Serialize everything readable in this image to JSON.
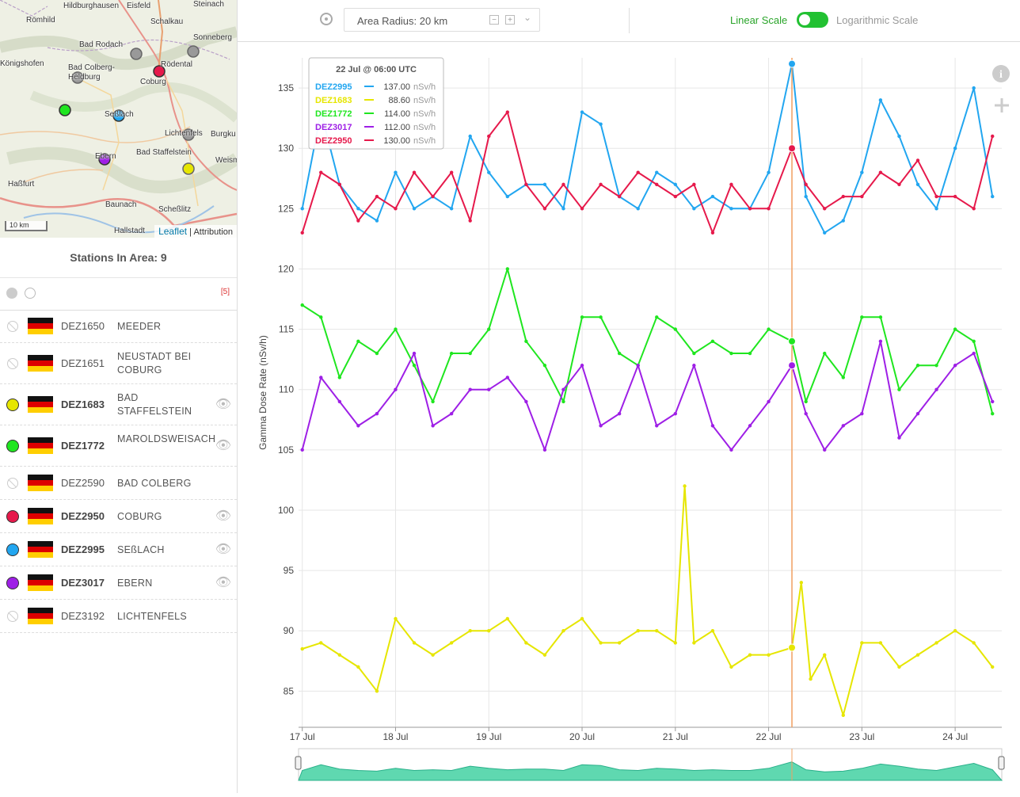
{
  "map": {
    "places": [
      {
        "name": "Hildburghausen"
      },
      {
        "name": "Eisfeld"
      },
      {
        "name": "Steinach"
      },
      {
        "name": "Römhild"
      },
      {
        "name": "Schalkau"
      },
      {
        "name": "Sonneberg"
      },
      {
        "name": "Bad Rodach"
      },
      {
        "name": "Rödental"
      },
      {
        "name": "Königshofen"
      },
      {
        "name": "Bad Colberg-Heldburg"
      },
      {
        "name": "Coburg"
      },
      {
        "name": "Seßlach"
      },
      {
        "name": "Lichtenfels"
      },
      {
        "name": "Burgku"
      },
      {
        "name": "Bad Staffelstein"
      },
      {
        "name": "Ebern"
      },
      {
        "name": "Weism"
      },
      {
        "name": "Haßfurt"
      },
      {
        "name": "Baunach"
      },
      {
        "name": "Scheßlitz"
      },
      {
        "name": "Hallstadt"
      }
    ],
    "scale_label": "10 km",
    "attribution_link": "Leaflet",
    "attribution_sep": "|",
    "attribution_text": "Attribution"
  },
  "stations_panel": {
    "title": "Stations In Area: 9",
    "selected_count": "[5]",
    "stations": [
      {
        "code": "DEZ1650",
        "name": "MEEDER",
        "active": false,
        "color": ""
      },
      {
        "code": "DEZ1651",
        "name": "NEUSTADT BEI COBURG",
        "active": false,
        "color": ""
      },
      {
        "code": "DEZ1683",
        "name": "BAD STAFFELSTEIN",
        "active": true,
        "color": "#e6e600"
      },
      {
        "code": "DEZ1772",
        "name": "MAROLDSWEISACH",
        "active": true,
        "color": "#1fe61f"
      },
      {
        "code": "DEZ2590",
        "name": "BAD COLBERG",
        "active": false,
        "color": ""
      },
      {
        "code": "DEZ2950",
        "name": "COBURG",
        "active": true,
        "color": "#e6194b"
      },
      {
        "code": "DEZ2995",
        "name": "SEßLACH",
        "active": true,
        "color": "#22a6f0"
      },
      {
        "code": "DEZ3017",
        "name": "EBERN",
        "active": true,
        "color": "#9e1fe6"
      },
      {
        "code": "DEZ3192",
        "name": "LICHTENFELS",
        "active": false,
        "color": ""
      }
    ]
  },
  "toolbar": {
    "radius_label": "Area Radius: 20 km",
    "linear_label": "Linear Scale",
    "log_label": "Logarithmic Scale"
  },
  "tooltip": {
    "title": "22 Jul @ 06:00 UTC",
    "rows": [
      {
        "code": "DEZ2995",
        "value": "137.00",
        "unit": "nSv/h",
        "color": "#22a6f0"
      },
      {
        "code": "DEZ1683",
        "value": "88.60",
        "unit": "nSv/h",
        "color": "#e6e600"
      },
      {
        "code": "DEZ1772",
        "value": "114.00",
        "unit": "nSv/h",
        "color": "#1fe61f"
      },
      {
        "code": "DEZ3017",
        "value": "112.00",
        "unit": "nSv/h",
        "color": "#9e1fe6"
      },
      {
        "code": "DEZ2950",
        "value": "130.00",
        "unit": "nSv/h",
        "color": "#e6194b"
      }
    ]
  },
  "chart_data": {
    "type": "line",
    "ylabel": "Gamma Dose Rate (nSv/h)",
    "ylim": [
      82,
      137.5
    ],
    "yticks": [
      85,
      90,
      95,
      100,
      105,
      110,
      115,
      120,
      125,
      130,
      135
    ],
    "xlim": [
      16.96,
      24.5
    ],
    "xticks": [
      {
        "v": 17,
        "label": "17 Jul"
      },
      {
        "v": 18,
        "label": "18 Jul"
      },
      {
        "v": 19,
        "label": "19 Jul"
      },
      {
        "v": 20,
        "label": "20 Jul"
      },
      {
        "v": 21,
        "label": "21 Jul"
      },
      {
        "v": 22,
        "label": "22 Jul"
      },
      {
        "v": 23,
        "label": "23 Jul"
      },
      {
        "v": 24,
        "label": "24 Jul"
      }
    ],
    "crosshair_x": 22.25,
    "series": [
      {
        "name": "DEZ2995",
        "color": "#22a6f0",
        "x": [
          17,
          17.2,
          17.4,
          17.6,
          17.8,
          18,
          18.2,
          18.4,
          18.6,
          18.8,
          19,
          19.2,
          19.4,
          19.6,
          19.8,
          20,
          20.2,
          20.4,
          20.6,
          20.8,
          21,
          21.2,
          21.4,
          21.6,
          21.8,
          22,
          22.25,
          22.4,
          22.6,
          22.8,
          23,
          23.2,
          23.4,
          23.6,
          23.8,
          24,
          24.2,
          24.4
        ],
        "y": [
          125,
          133,
          127,
          125,
          124,
          128,
          125,
          126,
          125,
          131,
          128,
          126,
          127,
          127,
          125,
          133,
          132,
          126,
          125,
          128,
          127,
          125,
          126,
          125,
          125,
          128,
          137,
          126,
          123,
          124,
          128,
          134,
          131,
          127,
          125,
          130,
          135,
          126
        ]
      },
      {
        "name": "DEZ2950",
        "color": "#e6194b",
        "x": [
          17,
          17.2,
          17.4,
          17.6,
          17.8,
          18,
          18.2,
          18.4,
          18.6,
          18.8,
          19,
          19.2,
          19.4,
          19.6,
          19.8,
          20,
          20.2,
          20.4,
          20.6,
          20.8,
          21,
          21.2,
          21.4,
          21.6,
          21.8,
          22,
          22.25,
          22.4,
          22.6,
          22.8,
          23,
          23.2,
          23.4,
          23.6,
          23.8,
          24,
          24.2,
          24.4
        ],
        "y": [
          123,
          128,
          127,
          124,
          126,
          125,
          128,
          126,
          128,
          124,
          131,
          133,
          127,
          125,
          127,
          125,
          127,
          126,
          128,
          127,
          126,
          127,
          123,
          127,
          125,
          125,
          130,
          127,
          125,
          126,
          126,
          128,
          127,
          129,
          126,
          126,
          125,
          131
        ]
      },
      {
        "name": "DEZ1772",
        "color": "#1fe61f",
        "x": [
          17,
          17.2,
          17.4,
          17.6,
          17.8,
          18,
          18.2,
          18.4,
          18.6,
          18.8,
          19,
          19.2,
          19.4,
          19.6,
          19.8,
          20,
          20.2,
          20.4,
          20.6,
          20.8,
          21,
          21.2,
          21.4,
          21.6,
          21.8,
          22,
          22.25,
          22.4,
          22.6,
          22.8,
          23,
          23.2,
          23.4,
          23.6,
          23.8,
          24,
          24.2,
          24.4
        ],
        "y": [
          117,
          116,
          111,
          114,
          113,
          115,
          112,
          109,
          113,
          113,
          115,
          120,
          114,
          112,
          109,
          116,
          116,
          113,
          112,
          116,
          115,
          113,
          114,
          113,
          113,
          115,
          114,
          109,
          113,
          111,
          116,
          116,
          110,
          112,
          112,
          115,
          114,
          108
        ]
      },
      {
        "name": "DEZ3017",
        "color": "#9e1fe6",
        "x": [
          17,
          17.2,
          17.4,
          17.6,
          17.8,
          18,
          18.2,
          18.4,
          18.6,
          18.8,
          19,
          19.2,
          19.4,
          19.6,
          19.8,
          20,
          20.2,
          20.4,
          20.6,
          20.8,
          21,
          21.2,
          21.4,
          21.6,
          21.8,
          22,
          22.25,
          22.4,
          22.6,
          22.8,
          23,
          23.2,
          23.4,
          23.6,
          23.8,
          24,
          24.2,
          24.4
        ],
        "y": [
          105,
          111,
          109,
          107,
          108,
          110,
          113,
          107,
          108,
          110,
          110,
          111,
          109,
          105,
          110,
          112,
          107,
          108,
          112,
          107,
          108,
          112,
          107,
          105,
          107,
          109,
          112,
          108,
          105,
          107,
          108,
          114,
          106,
          108,
          110,
          112,
          113,
          109
        ]
      },
      {
        "name": "DEZ1683",
        "color": "#e6e600",
        "x": [
          17,
          17.2,
          17.4,
          17.6,
          17.8,
          18,
          18.2,
          18.4,
          18.6,
          18.8,
          19,
          19.2,
          19.4,
          19.6,
          19.8,
          20,
          20.2,
          20.4,
          20.6,
          20.8,
          21,
          21.1,
          21.2,
          21.4,
          21.6,
          21.8,
          22,
          22.25,
          22.35,
          22.45,
          22.6,
          22.8,
          23,
          23.2,
          23.4,
          23.6,
          23.8,
          24,
          24.2,
          24.4
        ],
        "y": [
          88.5,
          89,
          88,
          87,
          85,
          91,
          89,
          88,
          89,
          90,
          90,
          91,
          89,
          88,
          90,
          91,
          89,
          89,
          90,
          90,
          89,
          102,
          89,
          90,
          87,
          88,
          88,
          88.6,
          94,
          86,
          88,
          83,
          89,
          89,
          87,
          88,
          89,
          90,
          89,
          87
        ]
      }
    ]
  }
}
